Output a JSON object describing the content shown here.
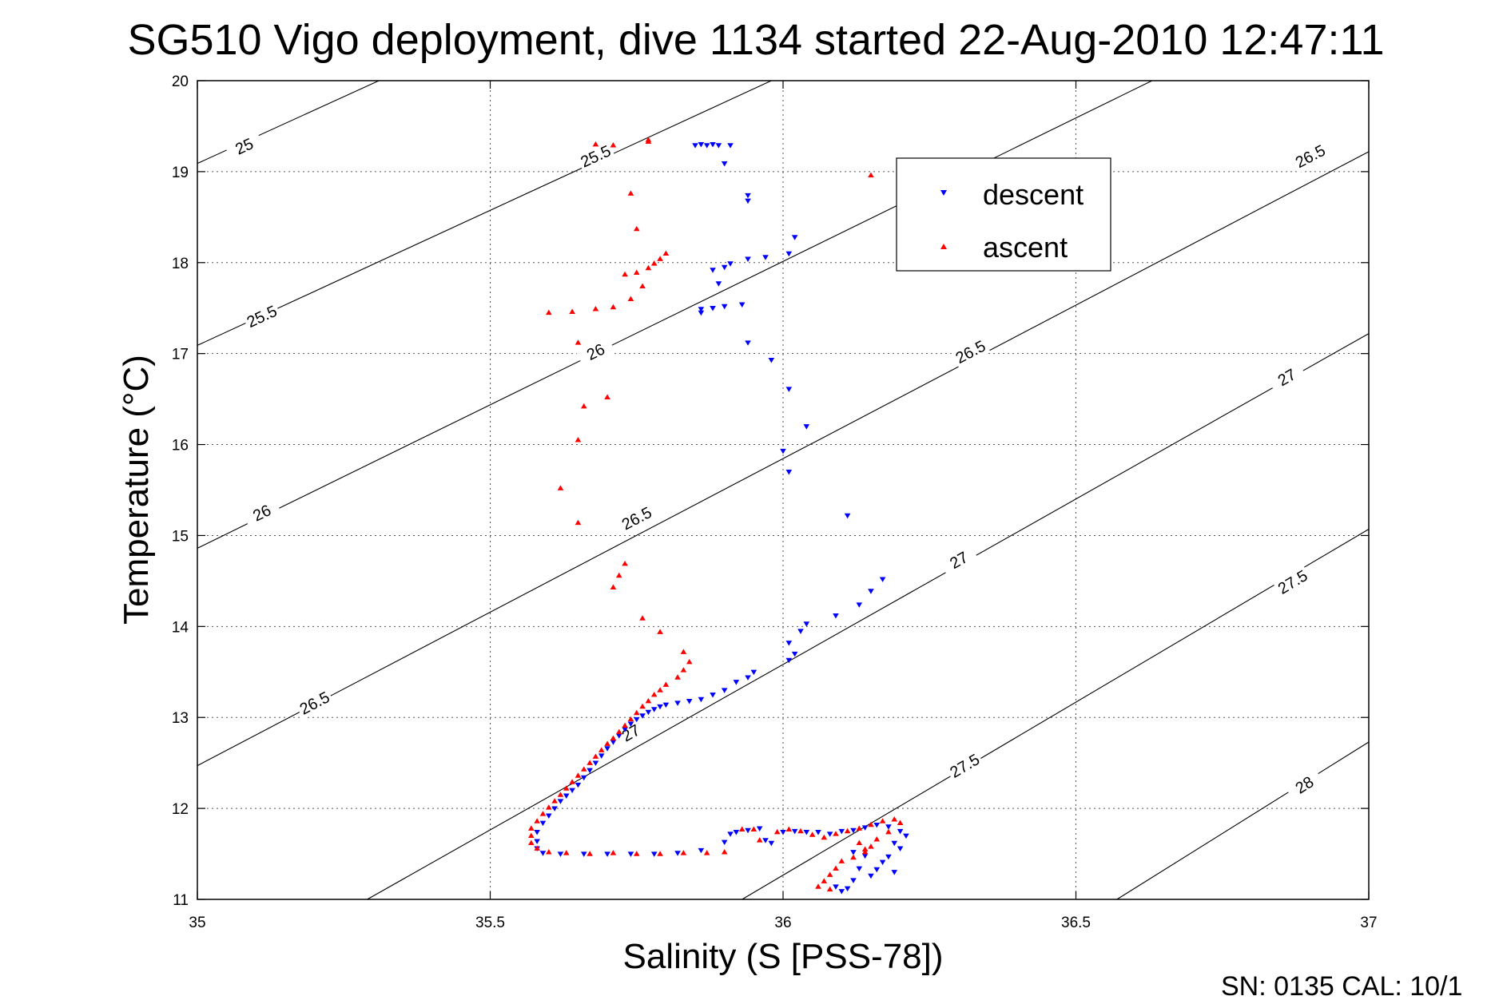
{
  "chart_data": {
    "type": "scatter",
    "title": "SG510 Vigo deployment, dive 1134 started 22-Aug-2010 12:47:11",
    "xlabel": "Salinity (S [PSS-78])",
    "ylabel": "Temperature (°C)",
    "xlim": [
      35,
      37
    ],
    "ylim": [
      11,
      20
    ],
    "xticks": [
      35,
      35.5,
      36,
      36.5,
      37
    ],
    "xtick_labels": [
      "35",
      "35.5",
      "36",
      "36.5",
      "37"
    ],
    "yticks": [
      11,
      12,
      13,
      14,
      15,
      16,
      17,
      18,
      19,
      20
    ],
    "ytick_labels": [
      "11",
      "12",
      "13",
      "14",
      "15",
      "16",
      "17",
      "18",
      "19",
      "20"
    ],
    "grid": true,
    "legend_position": "top-right",
    "series": [
      {
        "name": "descent",
        "marker": "triangle-down",
        "color": "#0000ff",
        "points": [
          [
            35.85,
            19.29
          ],
          [
            35.86,
            19.3
          ],
          [
            35.87,
            19.29
          ],
          [
            35.88,
            19.3
          ],
          [
            35.89,
            19.29
          ],
          [
            35.91,
            19.29
          ],
          [
            35.9,
            19.09
          ],
          [
            35.94,
            18.74
          ],
          [
            35.94,
            18.68
          ],
          [
            36.02,
            18.28
          ],
          [
            36.01,
            18.1
          ],
          [
            35.97,
            18.06
          ],
          [
            35.94,
            18.04
          ],
          [
            35.91,
            17.99
          ],
          [
            35.9,
            17.95
          ],
          [
            35.88,
            17.92
          ],
          [
            35.89,
            17.77
          ],
          [
            35.86,
            17.49
          ],
          [
            35.86,
            17.45
          ],
          [
            35.88,
            17.5
          ],
          [
            35.9,
            17.52
          ],
          [
            35.93,
            17.54
          ],
          [
            35.94,
            17.12
          ],
          [
            35.98,
            16.93
          ],
          [
            36.01,
            16.61
          ],
          [
            36.04,
            16.2
          ],
          [
            36.0,
            15.93
          ],
          [
            36.01,
            15.7
          ],
          [
            36.11,
            15.22
          ],
          [
            36.17,
            14.52
          ],
          [
            36.15,
            14.39
          ],
          [
            36.13,
            14.24
          ],
          [
            36.09,
            14.12
          ],
          [
            36.04,
            14.03
          ],
          [
            36.03,
            13.95
          ],
          [
            36.01,
            13.82
          ],
          [
            36.02,
            13.7
          ],
          [
            36.01,
            13.63
          ],
          [
            35.95,
            13.5
          ],
          [
            35.94,
            13.44
          ],
          [
            35.92,
            13.39
          ],
          [
            35.9,
            13.3
          ],
          [
            35.88,
            13.25
          ],
          [
            35.86,
            13.2
          ],
          [
            35.84,
            13.18
          ],
          [
            35.82,
            13.16
          ],
          [
            35.8,
            13.14
          ],
          [
            35.79,
            13.12
          ],
          [
            35.78,
            13.09
          ],
          [
            35.77,
            13.06
          ],
          [
            35.76,
            13.02
          ],
          [
            35.75,
            12.98
          ],
          [
            35.74,
            12.93
          ],
          [
            35.73,
            12.87
          ],
          [
            35.72,
            12.8
          ],
          [
            35.71,
            12.73
          ],
          [
            35.7,
            12.66
          ],
          [
            35.69,
            12.58
          ],
          [
            35.68,
            12.5
          ],
          [
            35.67,
            12.42
          ],
          [
            35.66,
            12.34
          ],
          [
            35.65,
            12.26
          ],
          [
            35.64,
            12.2
          ],
          [
            35.63,
            12.14
          ],
          [
            35.62,
            12.08
          ],
          [
            35.61,
            12.0
          ],
          [
            35.6,
            11.92
          ],
          [
            35.59,
            11.84
          ],
          [
            35.58,
            11.74
          ],
          [
            35.58,
            11.64
          ],
          [
            35.58,
            11.56
          ],
          [
            35.59,
            11.51
          ],
          [
            35.62,
            11.5
          ],
          [
            35.66,
            11.5
          ],
          [
            35.7,
            11.5
          ],
          [
            35.74,
            11.5
          ],
          [
            35.78,
            11.5
          ],
          [
            35.82,
            11.51
          ],
          [
            35.86,
            11.54
          ],
          [
            35.9,
            11.63
          ],
          [
            35.91,
            11.72
          ],
          [
            35.92,
            11.74
          ],
          [
            35.94,
            11.76
          ],
          [
            35.96,
            11.78
          ],
          [
            35.97,
            11.65
          ],
          [
            35.98,
            11.62
          ],
          [
            36.0,
            11.74
          ],
          [
            36.02,
            11.75
          ],
          [
            36.04,
            11.74
          ],
          [
            36.06,
            11.74
          ],
          [
            36.08,
            11.72
          ],
          [
            36.1,
            11.75
          ],
          [
            36.12,
            11.76
          ],
          [
            36.14,
            11.79
          ],
          [
            36.16,
            11.82
          ],
          [
            36.18,
            11.8
          ],
          [
            36.2,
            11.75
          ],
          [
            36.21,
            11.7
          ],
          [
            36.19,
            11.62
          ],
          [
            36.2,
            11.56
          ],
          [
            36.18,
            11.47
          ],
          [
            36.17,
            11.41
          ],
          [
            36.14,
            11.48
          ],
          [
            36.12,
            11.52
          ],
          [
            36.13,
            11.34
          ],
          [
            36.12,
            11.21
          ],
          [
            36.11,
            11.12
          ],
          [
            36.15,
            11.26
          ],
          [
            36.16,
            11.33
          ],
          [
            36.19,
            11.3
          ],
          [
            36.09,
            11.14
          ],
          [
            36.1,
            11.09
          ]
        ]
      },
      {
        "name": "ascent",
        "marker": "triangle-up",
        "color": "#ff0000",
        "points": [
          [
            35.68,
            19.3
          ],
          [
            35.71,
            19.29
          ],
          [
            35.77,
            19.33
          ],
          [
            35.77,
            19.35
          ],
          [
            36.15,
            18.96
          ],
          [
            35.74,
            18.76
          ],
          [
            35.75,
            18.37
          ],
          [
            35.8,
            18.1
          ],
          [
            35.79,
            18.04
          ],
          [
            35.78,
            17.99
          ],
          [
            35.77,
            17.94
          ],
          [
            35.75,
            17.89
          ],
          [
            35.73,
            17.87
          ],
          [
            35.76,
            17.74
          ],
          [
            35.74,
            17.6
          ],
          [
            35.71,
            17.51
          ],
          [
            35.68,
            17.49
          ],
          [
            35.64,
            17.46
          ],
          [
            35.6,
            17.45
          ],
          [
            35.65,
            17.12
          ],
          [
            35.66,
            16.42
          ],
          [
            35.7,
            16.52
          ],
          [
            35.65,
            16.05
          ],
          [
            35.62,
            15.52
          ],
          [
            35.65,
            15.14
          ],
          [
            35.73,
            14.69
          ],
          [
            35.72,
            14.56
          ],
          [
            35.71,
            14.43
          ],
          [
            35.76,
            14.09
          ],
          [
            35.79,
            13.94
          ],
          [
            35.83,
            13.72
          ],
          [
            35.84,
            13.61
          ],
          [
            35.83,
            13.52
          ],
          [
            35.82,
            13.44
          ],
          [
            35.8,
            13.36
          ],
          [
            35.79,
            13.3
          ],
          [
            35.78,
            13.25
          ],
          [
            35.77,
            13.18
          ],
          [
            35.76,
            13.12
          ],
          [
            35.75,
            13.05
          ],
          [
            35.74,
            12.98
          ],
          [
            35.73,
            12.91
          ],
          [
            35.72,
            12.84
          ],
          [
            35.71,
            12.77
          ],
          [
            35.7,
            12.71
          ],
          [
            35.69,
            12.64
          ],
          [
            35.68,
            12.57
          ],
          [
            35.67,
            12.5
          ],
          [
            35.66,
            12.43
          ],
          [
            35.65,
            12.36
          ],
          [
            35.64,
            12.29
          ],
          [
            35.63,
            12.22
          ],
          [
            35.62,
            12.15
          ],
          [
            35.61,
            12.08
          ],
          [
            35.6,
            12.01
          ],
          [
            35.59,
            11.94
          ],
          [
            35.58,
            11.86
          ],
          [
            35.57,
            11.78
          ],
          [
            35.57,
            11.7
          ],
          [
            35.57,
            11.62
          ],
          [
            35.58,
            11.56
          ],
          [
            35.6,
            11.52
          ],
          [
            35.63,
            11.51
          ],
          [
            35.67,
            11.5
          ],
          [
            35.71,
            11.51
          ],
          [
            35.75,
            11.5
          ],
          [
            35.79,
            11.5
          ],
          [
            35.83,
            11.51
          ],
          [
            35.87,
            11.51
          ],
          [
            35.9,
            11.52
          ],
          [
            35.93,
            11.77
          ],
          [
            35.95,
            11.77
          ],
          [
            35.96,
            11.65
          ],
          [
            35.99,
            11.74
          ],
          [
            36.01,
            11.77
          ],
          [
            36.03,
            11.75
          ],
          [
            36.05,
            11.71
          ],
          [
            36.07,
            11.68
          ],
          [
            36.09,
            11.72
          ],
          [
            36.11,
            11.75
          ],
          [
            36.13,
            11.78
          ],
          [
            36.15,
            11.82
          ],
          [
            36.17,
            11.86
          ],
          [
            36.19,
            11.88
          ],
          [
            36.2,
            11.84
          ],
          [
            36.18,
            11.74
          ],
          [
            36.16,
            11.66
          ],
          [
            36.15,
            11.58
          ],
          [
            36.14,
            11.52
          ],
          [
            36.12,
            11.46
          ],
          [
            36.1,
            11.42
          ],
          [
            36.09,
            11.34
          ],
          [
            36.08,
            11.27
          ],
          [
            36.07,
            11.2
          ],
          [
            36.06,
            11.14
          ],
          [
            36.08,
            11.11
          ],
          [
            36.13,
            11.62
          ],
          [
            36.14,
            11.55
          ]
        ]
      }
    ],
    "contour_labels": [
      "25",
      "25.5",
      "26",
      "26.5",
      "27",
      "27.5",
      "28"
    ],
    "contours": [
      {
        "level": "25",
        "start": [
          35,
          19.09
        ],
        "end": [
          35.31,
          20
        ],
        "labels": [
          [
            35.08,
            19.28
          ]
        ]
      },
      {
        "level": "25.5",
        "start": [
          35,
          17.09
        ],
        "end": [
          35.98,
          20
        ],
        "labels": [
          [
            35.11,
            17.41
          ],
          [
            35.68,
            19.17
          ]
        ]
      },
      {
        "level": "26",
        "start": [
          35,
          14.86
        ],
        "end": [
          36.63,
          20
        ],
        "labels": [
          [
            35.11,
            15.25
          ],
          [
            35.68,
            17.02
          ]
        ]
      },
      {
        "level": "26.5",
        "start": [
          35,
          12.47
        ],
        "end": [
          37,
          19.22
        ],
        "labels": [
          [
            35.2,
            13.16
          ],
          [
            35.75,
            15.19
          ],
          [
            36.32,
            17.02
          ],
          [
            36.9,
            19.17
          ]
        ]
      },
      {
        "level": "27",
        "start": [
          35.29,
          11
        ],
        "end": [
          37,
          17.22
        ],
        "labels": [
          [
            35.74,
            12.83
          ],
          [
            36.3,
            14.73
          ],
          [
            36.86,
            16.74
          ]
        ]
      },
      {
        "level": "27.5",
        "start": [
          35.93,
          11
        ],
        "end": [
          37,
          15.07
        ],
        "labels": [
          [
            36.31,
            12.47
          ],
          [
            36.87,
            14.49
          ]
        ]
      },
      {
        "level": "28",
        "start": [
          36.57,
          11
        ],
        "end": [
          37,
          12.73
        ],
        "labels": [
          [
            36.89,
            12.26
          ]
        ]
      }
    ]
  },
  "footer": "SN: 0135  CAL: 10/1"
}
